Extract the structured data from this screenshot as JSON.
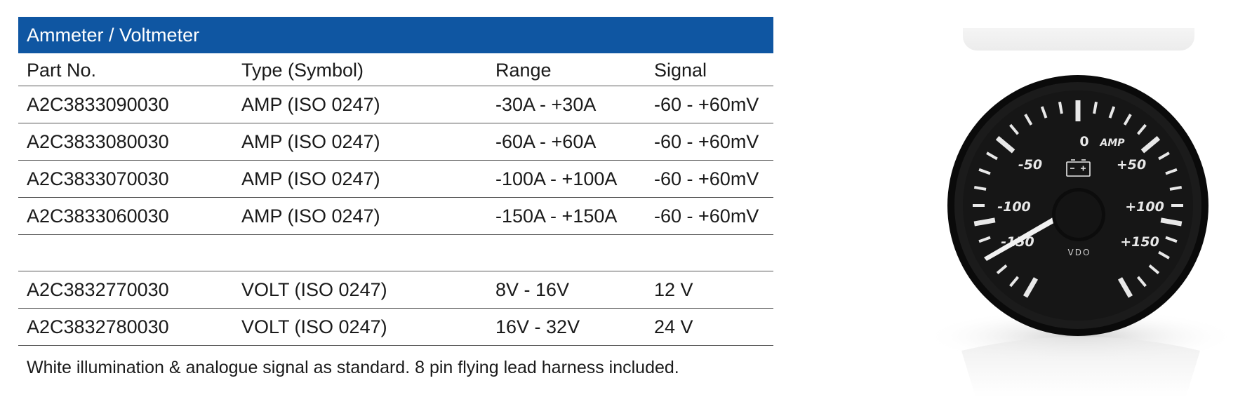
{
  "table": {
    "title": "Ammeter / Voltmeter",
    "headers": [
      "Part No.",
      "Type (Symbol)",
      "Range",
      "Signal"
    ],
    "ammeter_rows": [
      [
        "A2C3833090030",
        "AMP (ISO 0247)",
        "-30A - +30A",
        "-60 - +60mV"
      ],
      [
        "A2C3833080030",
        "AMP (ISO 0247)",
        "-60A - +60A",
        "-60 - +60mV"
      ],
      [
        "A2C3833070030",
        "AMP (ISO 0247)",
        "-100A - +100A",
        "-60 - +60mV"
      ],
      [
        "A2C3833060030",
        "AMP (ISO 0247)",
        "-150A - +150A",
        "-60 - +60mV"
      ]
    ],
    "voltmeter_rows": [
      [
        "A2C3832770030",
        "VOLT (ISO 0247)",
        "8V - 16V",
        "12 V"
      ],
      [
        "A2C3832780030",
        "VOLT (ISO 0247)",
        "16V - 32V",
        "24 V"
      ]
    ],
    "footnote": "White illumination & analogue signal as standard. 8 pin flying lead harness included."
  },
  "gauge": {
    "scale_labels": [
      "-150",
      "-100",
      "-50",
      "0",
      "+50",
      "+100",
      "+150"
    ],
    "unit_label": "AMP",
    "brand": "VDO",
    "symbol": "battery-icon"
  }
}
